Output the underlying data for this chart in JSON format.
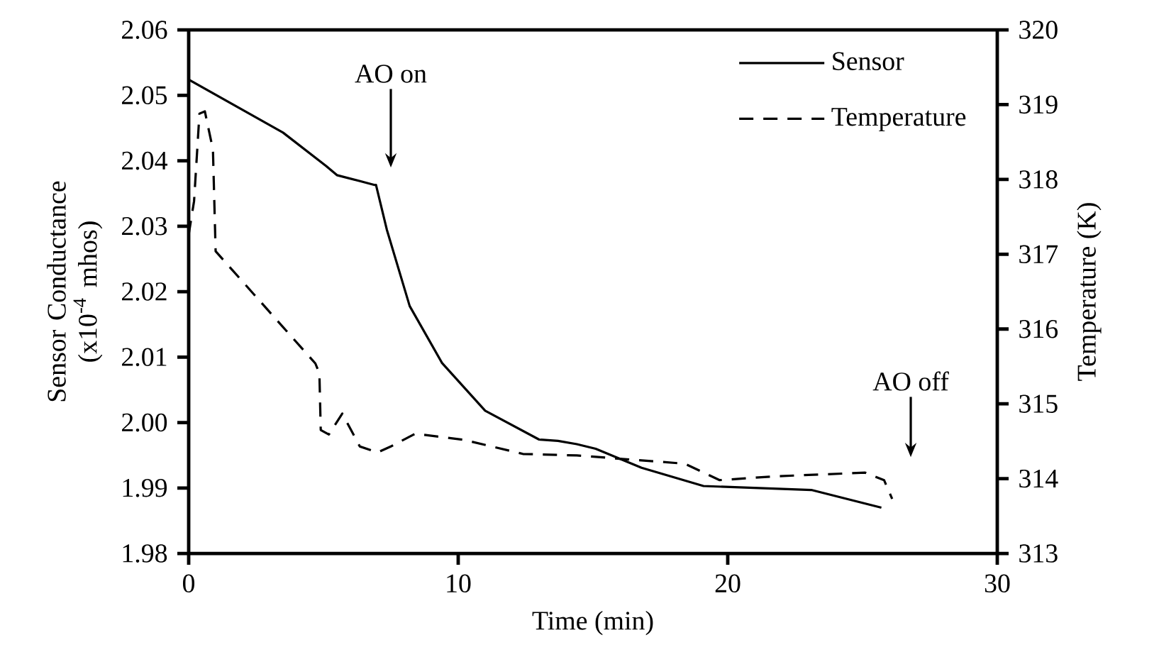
{
  "chart_data": {
    "type": "line",
    "xlabel": "Time (min)",
    "ylabel": "Sensor Conductance (x10$^{-4}$ mhos)",
    "y2label": "Temperature (K)",
    "xlim": [
      0,
      30
    ],
    "xticks": [
      0,
      10,
      20,
      30
    ],
    "ylim": [
      1.98,
      2.06
    ],
    "yticks": [
      1.98,
      1.99,
      {
        "value": 2.0,
        "label": "2.00"
      },
      2.01,
      2.02,
      2.03,
      2.04,
      2.05,
      2.06
    ],
    "y2lim": [
      313,
      320
    ],
    "y2ticks": [
      313,
      314,
      315,
      316,
      317,
      318,
      319,
      320
    ],
    "legend": "top right",
    "marker": "none",
    "series": [
      {
        "name": "Sensor",
        "color": "#000000",
        "line_style": "solid",
        "x": [
          0,
          3.5,
          5.1,
          5.5,
          6.9,
          6.95,
          7.35,
          8.2,
          9.4,
          11.0,
          13.0,
          13.7,
          14.4,
          15.1,
          16.8,
          19.1,
          23.1,
          25.7
        ],
        "values": [
          2.0524,
          2.0443,
          2.0392,
          2.0378,
          2.0363,
          2.0363,
          2.0295,
          2.0178,
          2.0091,
          2.0018,
          1.9974,
          1.9972,
          1.9967,
          1.996,
          1.9931,
          1.9903,
          1.9897,
          1.987
        ]
      },
      {
        "name": "Temperature",
        "color": "#000000",
        "line_style": "dashed",
        "axis": "y2",
        "x": [
          0,
          0.2,
          0.4,
          0.6,
          0.9,
          1.0,
          4.7,
          4.85,
          4.9,
          5.2,
          5.7,
          6.35,
          7.0,
          7.5,
          8.4,
          10.2,
          12.4,
          14.4,
          18.4,
          19.7,
          21.7,
          25.1,
          25.8,
          26.1
        ],
        "values": [
          317.26,
          317.71,
          318.88,
          318.91,
          318.4,
          317.04,
          315.54,
          315.41,
          314.65,
          314.59,
          314.87,
          314.43,
          314.35,
          314.43,
          314.6,
          314.52,
          314.33,
          314.31,
          314.2,
          313.98,
          314.03,
          314.08,
          313.98,
          313.73
        ]
      }
    ],
    "annotations": [
      "AO on",
      "AO off"
    ]
  }
}
